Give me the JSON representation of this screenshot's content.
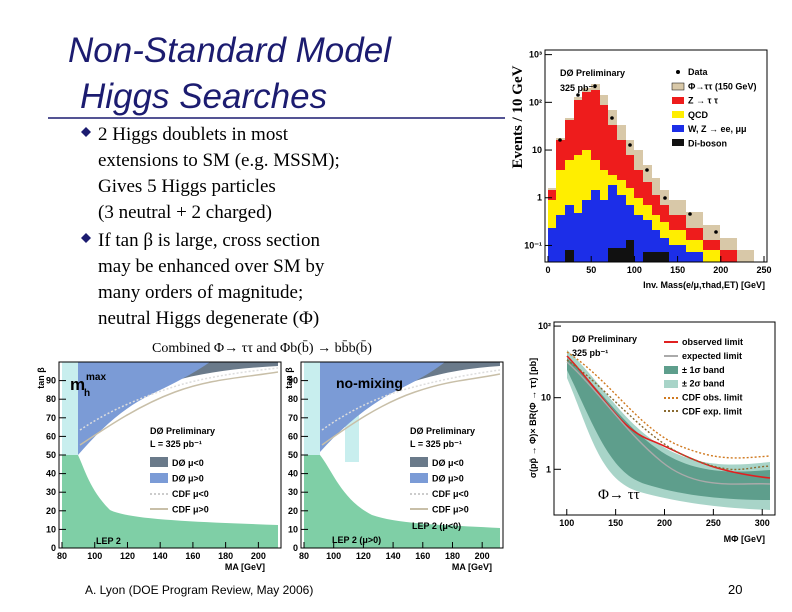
{
  "title_lines": [
    "Non-Standard Model",
    "Higgs Searches"
  ],
  "bullets": [
    {
      "lines": [
        "2 Higgs doublets in most",
        "extensions to SM (e.g. MSSM);",
        "Gives 5 Higgs particles",
        "(3 neutral + 2 charged)"
      ]
    },
    {
      "lines": [
        "If tan β  is large, cross section",
        "may be enhanced over SM by",
        "many orders of magnitude;",
        "neutral Higgs degenerate (Φ)"
      ]
    }
  ],
  "caption": "Combined Φ→ ττ and Φb(b̄) → bb̄b(b̄)",
  "footer": "A. Lyon (DOE Program Review, May 2006)",
  "page_number": "20",
  "figures": {
    "mass": {
      "title": "DØ Preliminary",
      "luminosity": "325 pb⁻¹",
      "y_label": "Events / 10 GeV",
      "x_label": "Inv. Mass(e/μ,τhad,ET) [GeV]",
      "legend": [
        "Data",
        "Φ→ττ (150 GeV)",
        "Z → τ τ",
        "QCD",
        "W, Z → ee, μμ",
        "Di-boson"
      ],
      "xlim": [
        0,
        250
      ],
      "xticks": [
        0,
        50,
        100,
        150,
        200,
        250
      ],
      "ylog": true,
      "ylim": [
        0.045,
        1250
      ],
      "yticks": [
        {
          "value": 0.1,
          "label": "10⁻¹"
        },
        1,
        10,
        {
          "value": 100,
          "label": "10²"
        },
        {
          "value": 1000,
          "label": "10³"
        }
      ]
    },
    "limit": {
      "title": "DØ Preliminary",
      "luminosity": "325 pb⁻¹",
      "y_label": "σ(pp̄ → Φ)× BR(Φ → ττ) [pb]",
      "x_label": "MΦ [GeV]",
      "legend": [
        "observed limit",
        "expected limit",
        "± 1σ band",
        "± 2σ band",
        "CDF obs. limit",
        "CDF exp. limit"
      ],
      "annotation": "Φ→ ττ",
      "xlim": [
        90,
        310
      ],
      "xticks": [
        100,
        150,
        200,
        250,
        300
      ],
      "ylog": true,
      "ylim": [
        0.23,
        114
      ],
      "yticks": [
        1,
        10,
        {
          "value": 100,
          "label": "10²"
        }
      ]
    },
    "tanb_mhmax": {
      "scenario": {
        "base": "m",
        "sub": "h",
        "sup": "max"
      },
      "y_label": "tan β",
      "x_label": "MA [GeV]",
      "title": "DØ Preliminary",
      "luminosity": "L = 325 pb⁻¹",
      "legend": [
        "DØ μ<0",
        "DØ μ>0",
        "CDF μ<0",
        "CDF μ>0"
      ],
      "lep_labels": [
        "LEP 2"
      ],
      "xlim": [
        80,
        212
      ],
      "xticks": [
        80,
        100,
        120,
        140,
        160,
        180,
        200
      ],
      "ylim": [
        0,
        100
      ],
      "yticks": [
        0,
        10,
        20,
        30,
        40,
        50,
        60,
        70,
        80,
        90
      ]
    },
    "tanb_nomix": {
      "scenario": "no-mixing",
      "y_label": "tan β",
      "x_label": "MA [GeV]",
      "title": "DØ Preliminary",
      "luminosity": "L = 325 pb⁻¹",
      "legend": [
        "DØ μ<0",
        "DØ μ>0",
        "CDF μ<0",
        "CDF μ>0"
      ],
      "lep_labels": [
        "LEP 2 (μ<0)",
        "LEP 2 (μ>0)"
      ],
      "xlim": [
        80,
        212
      ],
      "xticks": [
        80,
        100,
        120,
        140,
        160,
        180,
        200
      ],
      "ylim": [
        0,
        100
      ],
      "yticks": [
        0,
        10,
        20,
        30,
        40,
        50,
        60,
        70,
        80,
        90
      ]
    }
  }
}
